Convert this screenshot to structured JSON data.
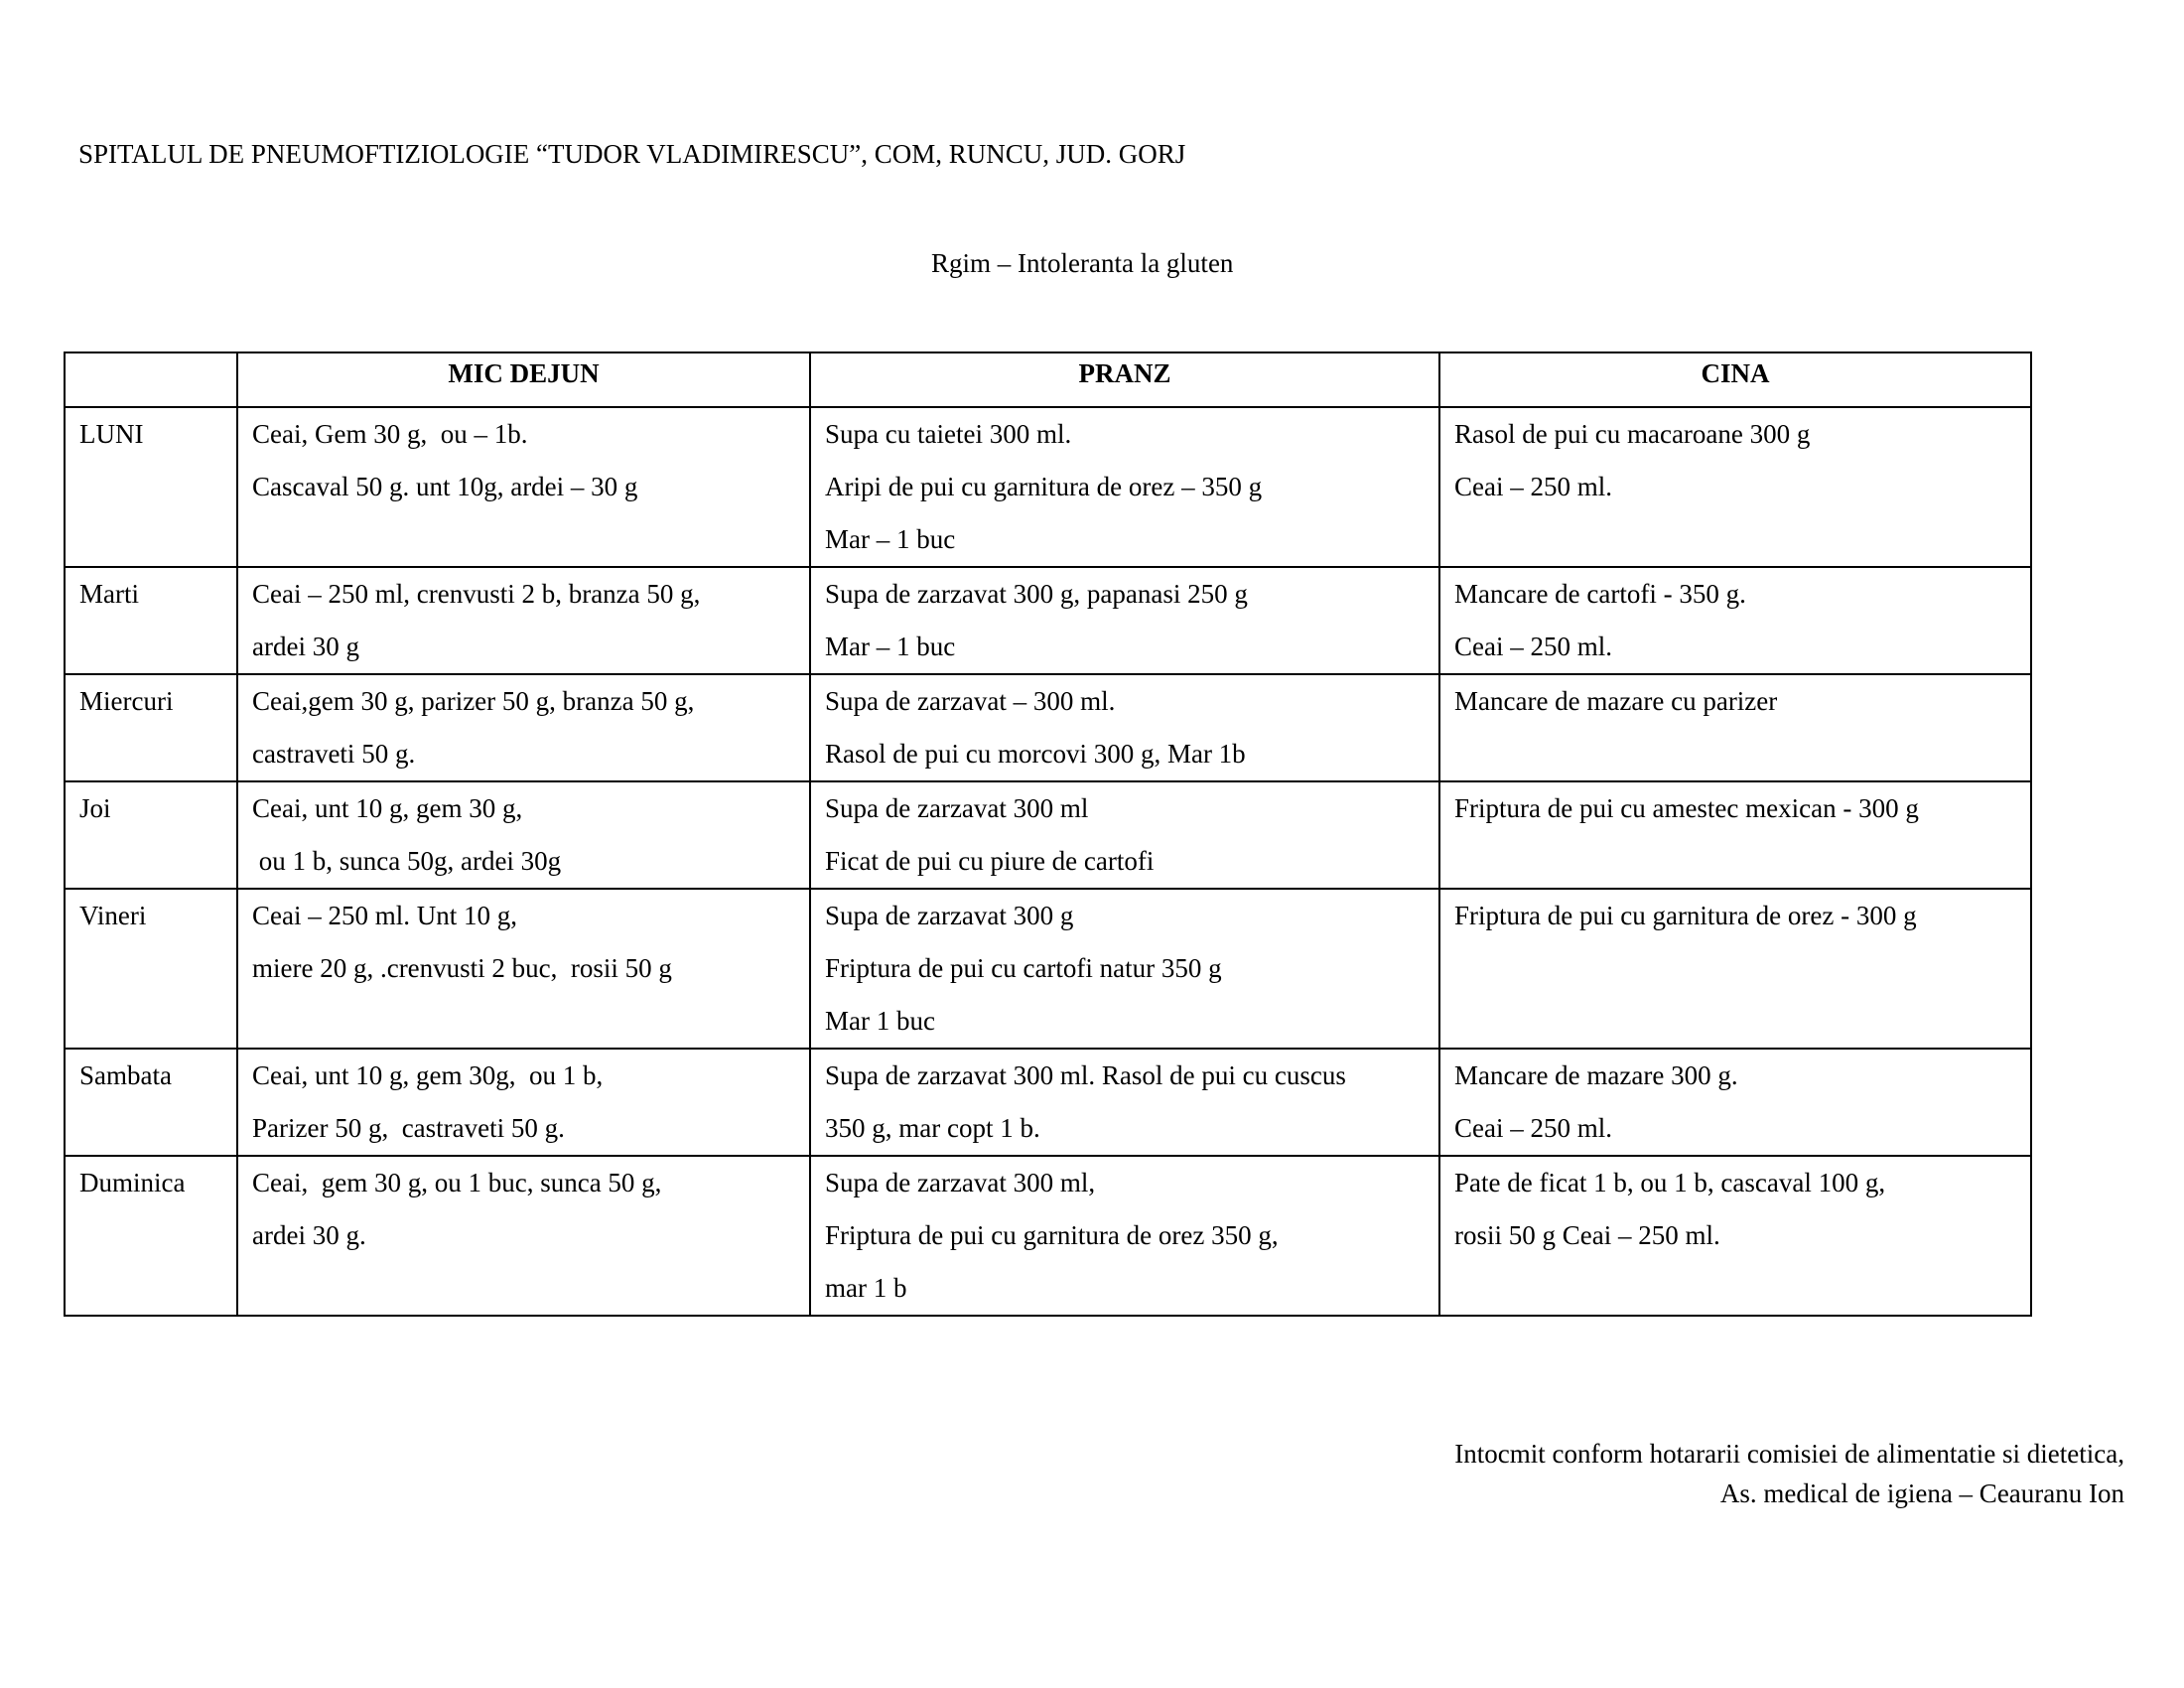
{
  "header": "SPITALUL DE PNEUMOFTIZIOLOGIE “TUDOR VLADIMIRESCU”, COM, RUNCU, JUD. GORJ",
  "subtitle": "Rgim  – Intoleranta la gluten",
  "table": {
    "columns": [
      "",
      "MIC DEJUN",
      "PRANZ",
      "CINA"
    ],
    "rows": [
      {
        "day": "LUNI",
        "mic_dejun": [
          "Ceai, Gem 30 g,  ou – 1b.",
          "Cascaval 50 g. unt 10g, ardei – 30 g"
        ],
        "pranz": [
          "Supa cu taietei 300 ml.",
          "Aripi de pui cu garnitura de orez – 350 g",
          "Mar – 1 buc"
        ],
        "cina": [
          "Rasol de pui cu macaroane 300 g",
          "Ceai – 250 ml."
        ]
      },
      {
        "day": "Marti",
        "mic_dejun": [
          "Ceai – 250 ml, crenvusti 2 b, branza 50 g,",
          "ardei 30 g"
        ],
        "pranz": [
          "Supa de zarzavat 300 g, papanasi 250 g",
          "Mar – 1 buc"
        ],
        "cina": [
          "Mancare de cartofi - 350 g.",
          "Ceai – 250 ml."
        ]
      },
      {
        "day": "Miercuri",
        "mic_dejun": [
          "Ceai,gem 30 g, parizer 50 g, branza 50 g,",
          "castraveti 50 g."
        ],
        "pranz": [
          "Supa de zarzavat – 300 ml.",
          "Rasol de pui cu morcovi 300 g, Mar 1b"
        ],
        "cina": [
          "Mancare de mazare cu parizer"
        ]
      },
      {
        "day": "Joi",
        "mic_dejun": [
          "Ceai, unt 10 g, gem 30 g,",
          " ou 1 b, sunca 50g, ardei 30g"
        ],
        "pranz": [
          "Supa de zarzavat 300 ml",
          "Ficat de pui cu piure de cartofi"
        ],
        "cina": [
          "Friptura de pui cu amestec mexican - 300 g"
        ]
      },
      {
        "day": "Vineri",
        "mic_dejun": [
          "Ceai – 250 ml. Unt 10 g,",
          "miere 20 g, .crenvusti 2 buc,  rosii 50 g"
        ],
        "pranz": [
          "Supa de zarzavat 300 g",
          "Friptura de pui cu cartofi natur 350 g",
          "Mar 1 buc"
        ],
        "cina": [
          "Friptura de pui cu garnitura de orez - 300 g"
        ]
      },
      {
        "day": "Sambata",
        "mic_dejun": [
          "Ceai, unt 10 g, gem 30g,  ou 1 b,",
          "Parizer 50 g,  castraveti 50 g."
        ],
        "pranz": [
          "Supa de zarzavat 300 ml. Rasol de pui cu cuscus",
          "350 g, mar copt 1 b."
        ],
        "cina": [
          "Mancare de mazare 300 g.",
          "Ceai – 250 ml."
        ]
      },
      {
        "day": "Duminica",
        "mic_dejun": [
          "Ceai,  gem 30 g, ou 1 buc, sunca 50 g,",
          "ardei 30 g."
        ],
        "pranz": [
          "Supa de zarzavat 300 ml,",
          "Friptura de pui cu garnitura de orez 350 g,",
          "mar 1 b"
        ],
        "cina": [
          "Pate de ficat 1 b, ou 1 b, cascaval 100 g,",
          "rosii 50 g Ceai – 250 ml."
        ]
      }
    ]
  },
  "footer": {
    "line1": "Intocmit conform hotararii comisiei de alimentatie si dietetica,",
    "line2": "As. medical de igiena – Ceauranu Ion"
  }
}
